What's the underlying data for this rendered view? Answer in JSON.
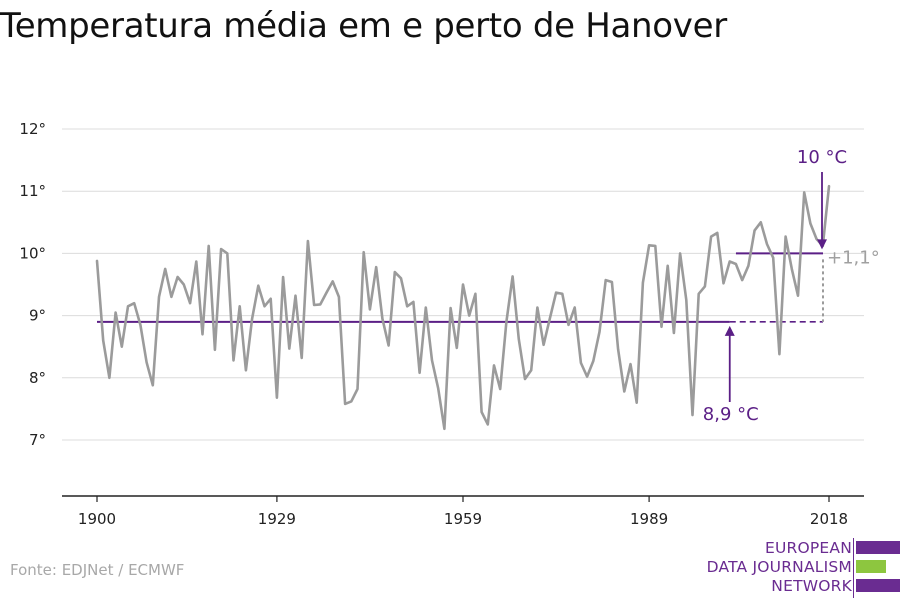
{
  "header": {
    "title": "Temperatura média em e perto de Hanover"
  },
  "footer": {
    "source": "Fonte: EDJNet / ECMWF",
    "logo_lines": [
      "EUROPEAN",
      "DATA JOURNALISM",
      "NETWORK"
    ]
  },
  "colors": {
    "series": "#9b9b9b",
    "accent": "#5b1f86",
    "grid": "#dcdcdc",
    "logo_green": "#8dc63f",
    "logo_purple": "#6a2c91"
  },
  "chart_data": {
    "type": "line",
    "title": "Temperatura média em e perto de Hanover",
    "xlabel": "",
    "ylabel": "",
    "xlim": [
      1900,
      2018
    ],
    "ylim": [
      6,
      12
    ],
    "x_ticks": [
      1900,
      1929,
      1959,
      1989,
      2018
    ],
    "x_tick_labels": [
      "1900",
      "1929",
      "1959",
      "1989",
      "2018"
    ],
    "y_ticks": [
      7,
      8,
      9,
      10,
      11,
      12
    ],
    "y_tick_labels": [
      "7°",
      "8°",
      "9°",
      "10°",
      "11°",
      "12°"
    ],
    "grid": true,
    "series": [
      {
        "x": [
          1900,
          1901,
          1902,
          1903,
          1904,
          1905,
          1906,
          1907,
          1908,
          1909,
          1910,
          1911,
          1912,
          1913,
          1914,
          1915,
          1916,
          1917,
          1918,
          1919,
          1920,
          1921,
          1922,
          1923,
          1924,
          1925,
          1926,
          1927,
          1928,
          1929,
          1930,
          1931,
          1932,
          1933,
          1934,
          1935,
          1936,
          1937,
          1938,
          1939,
          1940,
          1941,
          1942,
          1943,
          1944,
          1945,
          1946,
          1947,
          1948,
          1949,
          1950,
          1951,
          1952,
          1953,
          1954,
          1955,
          1956,
          1957,
          1958,
          1959,
          1960,
          1961,
          1962,
          1963,
          1964,
          1965,
          1966,
          1967,
          1968,
          1969,
          1970,
          1971,
          1972,
          1973,
          1974,
          1975,
          1976,
          1977,
          1978,
          1979,
          1980,
          1981,
          1982,
          1983,
          1984,
          1985,
          1986,
          1987,
          1988,
          1989,
          1990,
          1991,
          1992,
          1993,
          1994,
          1995,
          1996,
          1997,
          1998,
          1999,
          2000,
          2001,
          2002,
          2003,
          2004,
          2005,
          2006,
          2007,
          2008,
          2009,
          2010,
          2011,
          2012,
          2013,
          2014,
          2015,
          2016,
          2017,
          2018
        ],
        "values": [
          9.88,
          8.6,
          8.0,
          9.05,
          8.5,
          9.15,
          9.2,
          8.85,
          8.25,
          7.88,
          9.3,
          9.75,
          9.3,
          9.62,
          9.5,
          9.2,
          9.87,
          8.7,
          10.12,
          8.45,
          10.07,
          10.0,
          8.28,
          9.15,
          8.12,
          8.95,
          9.48,
          9.15,
          9.27,
          7.68,
          9.62,
          8.47,
          9.32,
          8.32,
          10.2,
          9.17,
          9.18,
          9.37,
          9.55,
          9.3,
          7.58,
          7.62,
          7.82,
          10.02,
          9.1,
          9.78,
          8.95,
          8.52,
          9.7,
          9.6,
          9.15,
          9.22,
          8.08,
          9.13,
          8.28,
          7.83,
          7.18,
          9.12,
          8.48,
          9.5,
          9.0,
          9.35,
          7.45,
          7.25,
          8.2,
          7.82,
          8.9,
          9.63,
          8.62,
          7.98,
          8.12,
          9.13,
          8.53,
          8.95,
          9.37,
          9.35,
          8.85,
          9.13,
          8.24,
          8.02,
          8.27,
          8.74,
          9.57,
          9.54,
          8.46,
          7.78,
          8.22,
          7.6,
          9.53,
          10.13,
          10.12,
          8.82,
          9.8,
          8.72,
          10.0,
          9.25,
          7.4,
          9.35,
          9.47,
          10.27,
          10.33,
          9.52,
          9.87,
          9.83,
          9.57,
          9.8,
          10.37,
          10.5,
          10.15,
          9.93,
          8.38,
          10.27,
          9.75,
          9.32,
          10.98,
          10.48,
          10.23,
          10.12,
          11.08
        ]
      }
    ],
    "reference_lines": [
      {
        "label": "8,9 °C",
        "value": 8.9
      },
      {
        "label": "10 °C",
        "value": 10.0
      }
    ],
    "difference_label": "+1,1°"
  }
}
